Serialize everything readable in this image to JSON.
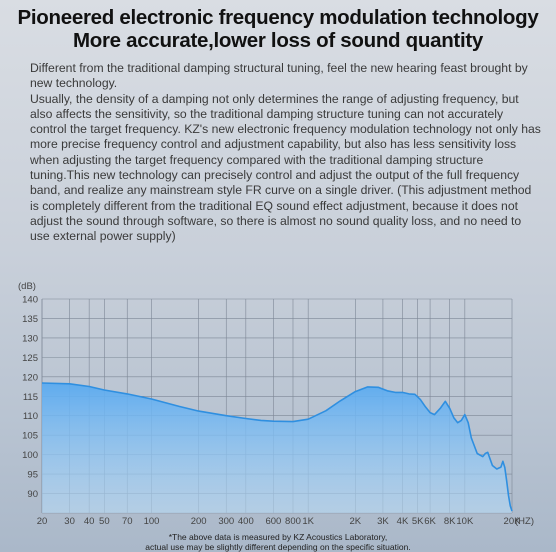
{
  "header": {
    "title_line1": "Pioneered electronic frequency modulation technology",
    "title_line2": "More accurate,lower loss of sound quantity"
  },
  "description": {
    "para1": "Different from the traditional damping structural tuning, feel the new hearing feast brought by new technology.",
    "para2": "Usually, the density of a damping not only determines the range of adjusting frequency, but also affects the sensitivity, so the traditional damping structure tuning can not accurately control the target frequency. KZ's new electronic frequency modulation technology not only has more precise frequency control and adjustment capability, but also has less sensitivity loss when adjusting the target frequency compared with the traditional damping structure tuning.This new technology can precisely control and adjust the output of the full frequency band, and realize any mainstream style FR curve on a single driver. (This adjustment method is completely different from the traditional EQ sound effect adjustment, because it does not adjust the sound through software, so there is almost no sound quality loss, and no need to use external power supply)"
  },
  "chart_data": {
    "type": "area",
    "ylabel": "(dB)",
    "xlabel": "(HZ)",
    "x_scale": "log",
    "ylim": [
      85,
      140
    ],
    "xlim": [
      20,
      20000
    ],
    "grid": true,
    "y_ticks": [
      90,
      95,
      100,
      105,
      110,
      115,
      120,
      125,
      130,
      135,
      140
    ],
    "x_ticks": [
      {
        "value": 20,
        "label": "20"
      },
      {
        "value": 30,
        "label": "30"
      },
      {
        "value": 40,
        "label": "40"
      },
      {
        "value": 50,
        "label": "50"
      },
      {
        "value": 70,
        "label": "70"
      },
      {
        "value": 100,
        "label": "100"
      },
      {
        "value": 200,
        "label": "200"
      },
      {
        "value": 300,
        "label": "300"
      },
      {
        "value": 400,
        "label": "400"
      },
      {
        "value": 600,
        "label": "600"
      },
      {
        "value": 800,
        "label": "800"
      },
      {
        "value": 1000,
        "label": "1K"
      },
      {
        "value": 2000,
        "label": "2K"
      },
      {
        "value": 3000,
        "label": "3K"
      },
      {
        "value": 4000,
        "label": "4K"
      },
      {
        "value": 5000,
        "label": "5K"
      },
      {
        "value": 6000,
        "label": "6K"
      },
      {
        "value": 8000,
        "label": "8K"
      },
      {
        "value": 10000,
        "label": "10K"
      },
      {
        "value": 20000,
        "label": "20K"
      }
    ],
    "series": [
      {
        "x": [
          20,
          30,
          40,
          50,
          70,
          100,
          150,
          200,
          300,
          400,
          500,
          600,
          800,
          1000,
          1300,
          1600,
          2000,
          2400,
          2800,
          3200,
          3600,
          4000,
          4400,
          4800,
          5200,
          5600,
          6000,
          6400,
          7000,
          7500,
          8000,
          8500,
          9000,
          9500,
          10000,
          10500,
          11000,
          12000,
          13000,
          13500,
          14000,
          15000,
          16000,
          17000,
          17500,
          18000,
          18500,
          19000,
          19500,
          20000
        ],
        "y": [
          118.4,
          118.2,
          117.5,
          116.6,
          115.6,
          114.3,
          112.4,
          111.2,
          110.0,
          109.3,
          108.8,
          108.6,
          108.5,
          109.1,
          111.3,
          113.8,
          116.2,
          117.4,
          117.3,
          116.4,
          116.0,
          116.0,
          115.6,
          115.5,
          114.2,
          112.3,
          110.8,
          110.3,
          112.0,
          113.7,
          111.9,
          109.5,
          108.2,
          108.8,
          110.3,
          108.2,
          104.3,
          100.3,
          99.5,
          100.3,
          100.6,
          97.2,
          96.3,
          96.8,
          98.3,
          96.7,
          93.2,
          89.5,
          86.8,
          85.5
        ]
      }
    ]
  },
  "footnote": {
    "line1": "*The above data is measured by KZ Acoustics Laboratory,",
    "line2": "actual use may be slightly different depending on the specific situation."
  },
  "colors": {
    "curve": "#2f8fe0",
    "fill_top": "#5aaaf0",
    "fill_bottom": "#b8dcf8",
    "grid": "#7d8796",
    "tick_label": "#444444"
  }
}
